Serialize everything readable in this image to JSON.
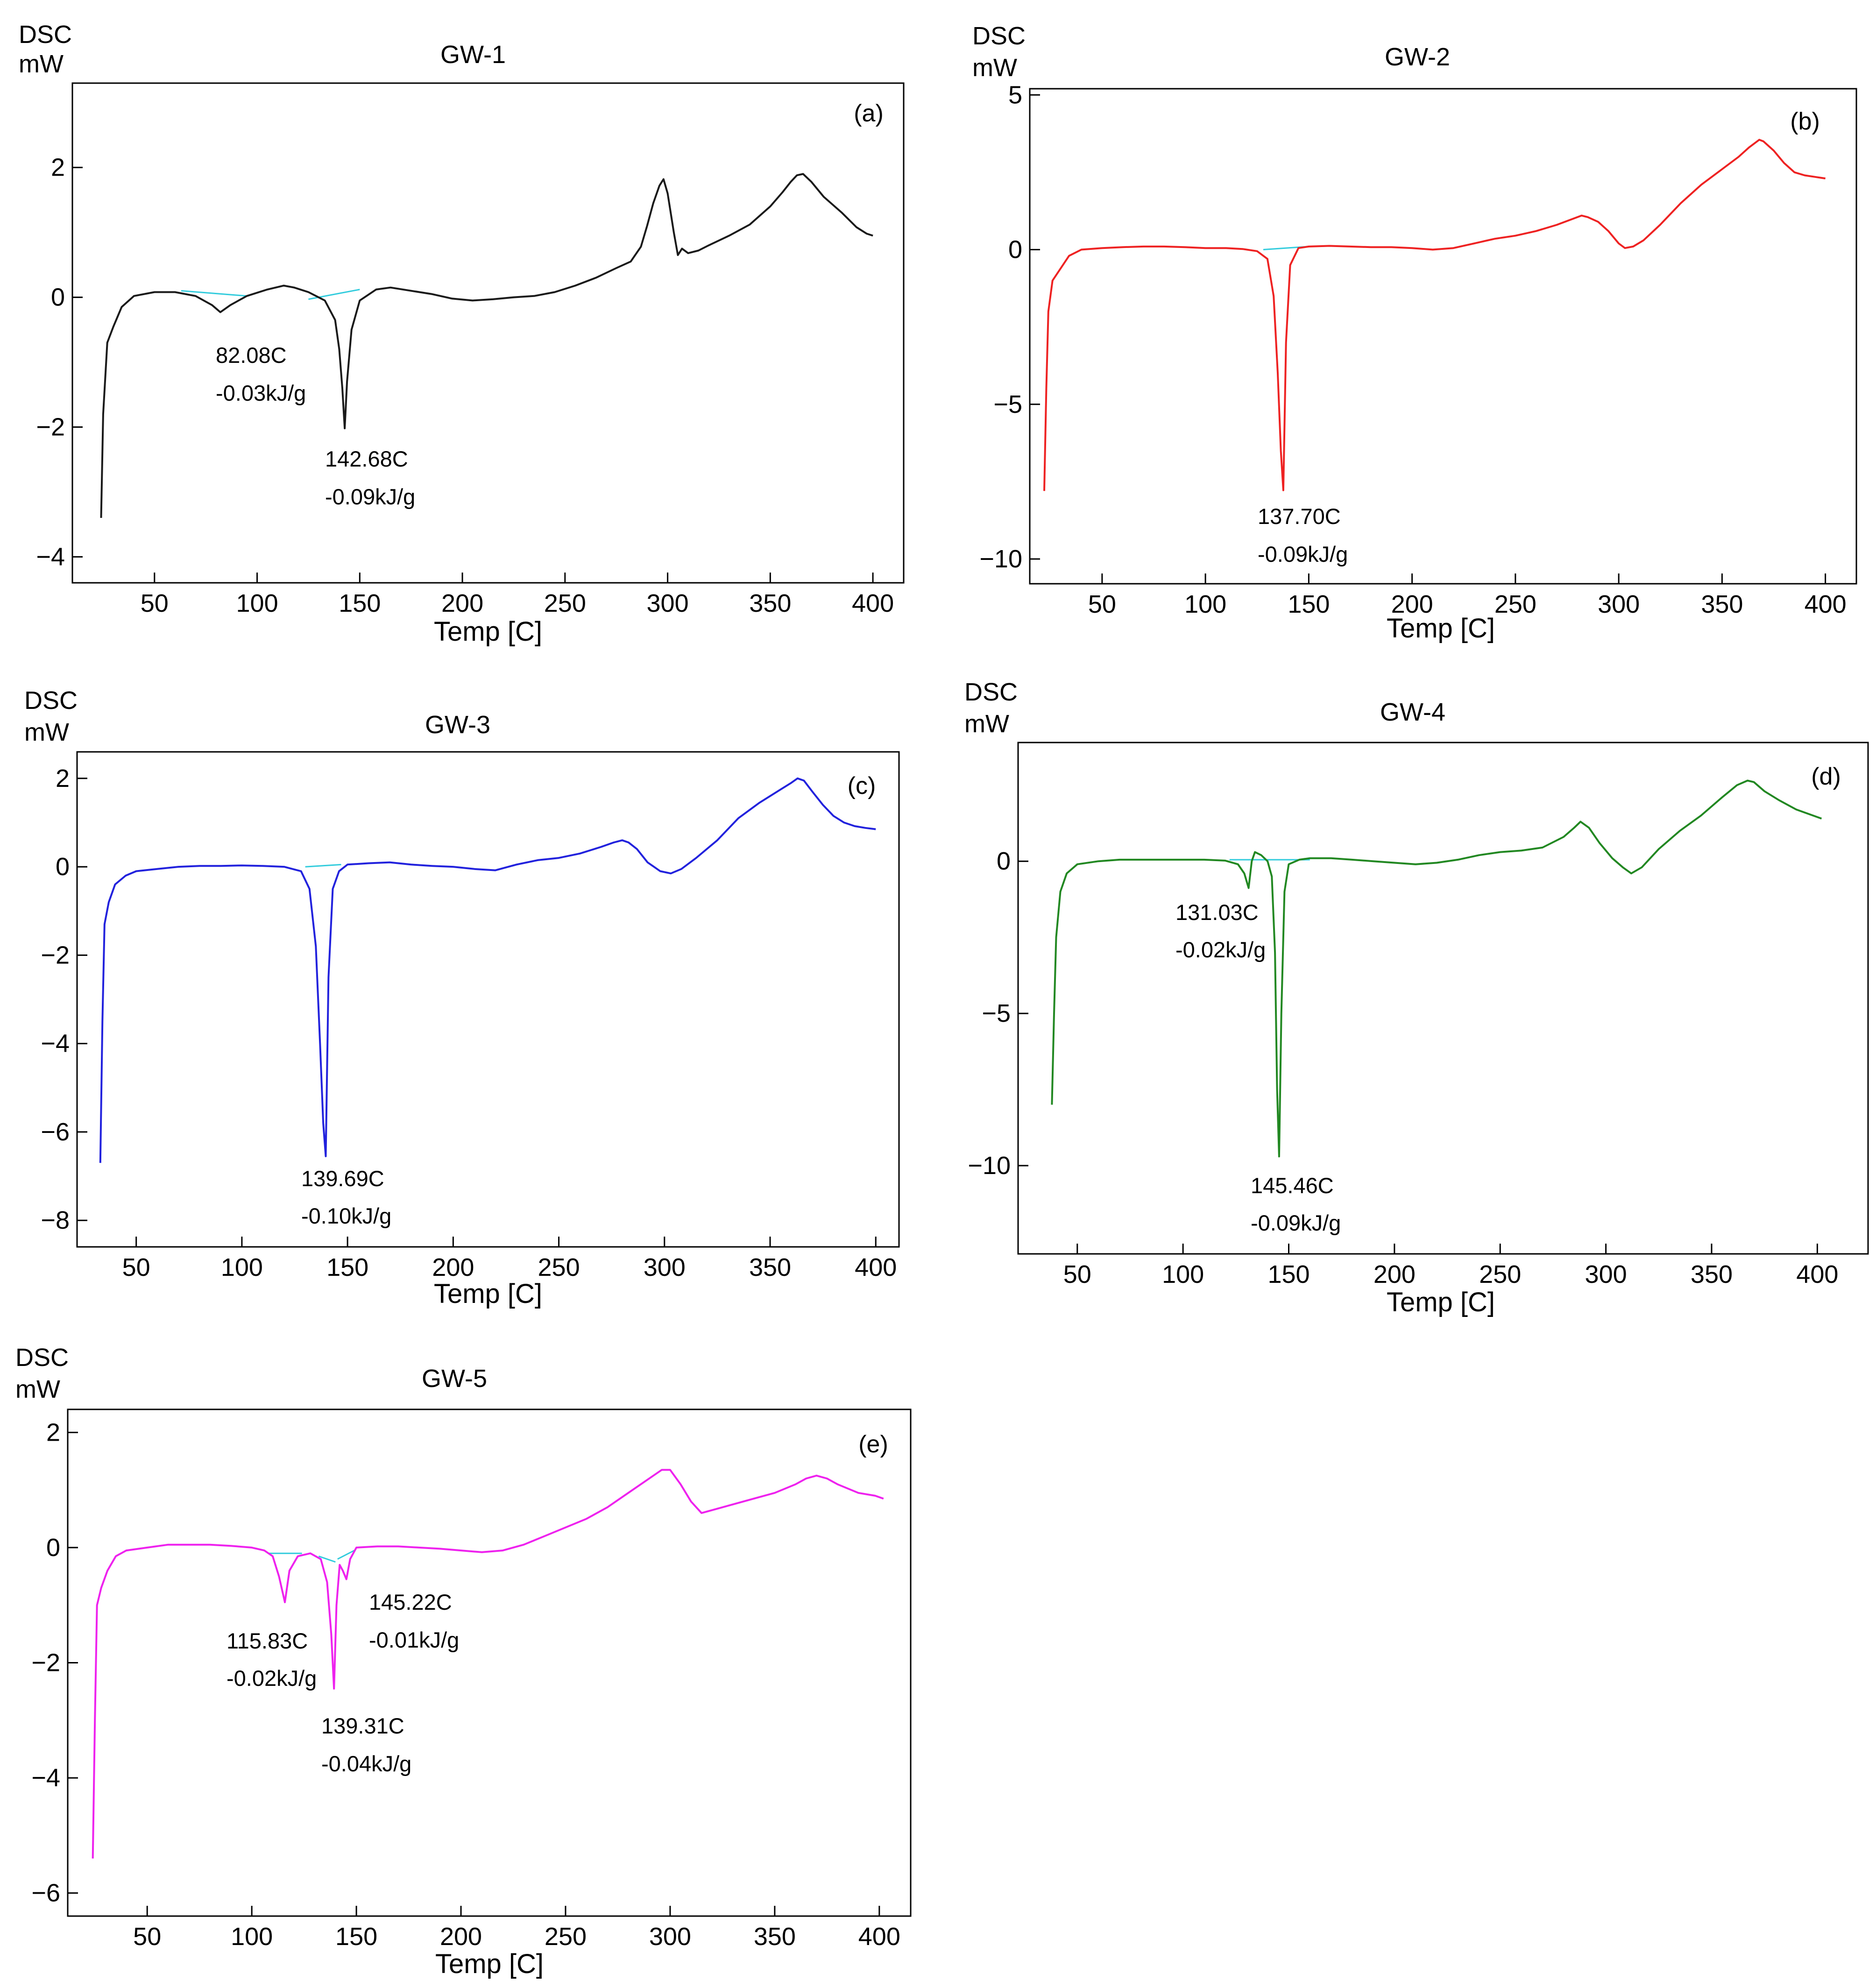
{
  "chart_data": [
    {
      "type": "line",
      "panel": "(a)",
      "title": "GW-1",
      "ylabel_top": "DSC",
      "ylabel_unit": "mW",
      "xlabel": "Temp  [C]",
      "xlim": [
        10,
        415
      ],
      "ylim": [
        -4.4,
        3.3
      ],
      "xticks": [
        50,
        100,
        150,
        200,
        250,
        300,
        350,
        400
      ],
      "yticks": [
        2,
        0,
        -2,
        -4
      ],
      "ytick_labels": [
        "2",
        "0",
        "−2",
        "−4"
      ],
      "color": "#1a1a1a",
      "series": [
        {
          "name": "GW-1",
          "x": [
            24,
            25,
            27,
            30,
            34,
            40,
            50,
            60,
            70,
            78,
            82.08,
            87,
            95,
            105,
            113,
            118,
            125,
            133,
            138,
            140,
            141.5,
            142.68,
            143.8,
            146,
            150,
            158,
            165,
            175,
            185,
            195,
            205,
            215,
            225,
            235,
            245,
            255,
            265,
            275,
            282,
            287,
            290,
            293,
            296,
            298,
            300,
            303,
            305,
            307,
            310,
            315,
            320,
            330,
            340,
            350,
            356,
            360,
            363,
            366,
            370,
            376,
            385,
            392,
            397,
            400
          ],
          "y": [
            -3.4,
            -1.8,
            -0.7,
            -0.45,
            -0.15,
            0.02,
            0.08,
            0.08,
            0.02,
            -0.12,
            -0.23,
            -0.12,
            0.02,
            0.12,
            0.18,
            0.15,
            0.08,
            -0.05,
            -0.35,
            -0.8,
            -1.4,
            -2.02,
            -1.3,
            -0.5,
            -0.05,
            0.12,
            0.15,
            0.1,
            0.05,
            -0.02,
            -0.05,
            -0.03,
            0.0,
            0.02,
            0.08,
            0.18,
            0.3,
            0.45,
            0.55,
            0.78,
            1.1,
            1.45,
            1.72,
            1.82,
            1.6,
            1.0,
            0.65,
            0.75,
            0.68,
            0.72,
            0.8,
            0.95,
            1.12,
            1.4,
            1.62,
            1.78,
            1.88,
            1.9,
            1.78,
            1.55,
            1.3,
            1.08,
            0.98,
            0.95
          ]
        }
      ],
      "baselines": [
        {
          "x": [
            63,
            95
          ],
          "y": [
            0.1,
            0.02
          ]
        },
        {
          "x": [
            125,
            150
          ],
          "y": [
            -0.03,
            0.12
          ]
        }
      ],
      "annotations": [
        {
          "temp": "82.08C",
          "energy": "-0.03kJ/g"
        },
        {
          "temp": "142.68C",
          "energy": "-0.09kJ/g"
        }
      ]
    },
    {
      "type": "line",
      "panel": "(b)",
      "title": "GW-2",
      "ylabel_top": "DSC",
      "ylabel_unit": "mW",
      "xlabel": "Temp  [C]",
      "xlim": [
        15,
        415
      ],
      "ylim": [
        -10.8,
        5.2
      ],
      "xticks": [
        50,
        100,
        150,
        200,
        250,
        300,
        350,
        400
      ],
      "yticks": [
        5,
        0,
        -5,
        -10
      ],
      "ytick_labels": [
        "5",
        "0",
        "−5",
        "−10"
      ],
      "color": "#ee2222",
      "series": [
        {
          "name": "GW-2",
          "x": [
            22,
            23,
            24,
            26,
            30,
            34,
            40,
            50,
            60,
            70,
            80,
            90,
            100,
            110,
            118,
            125,
            130,
            133,
            135,
            136.5,
            137.7,
            139,
            141,
            145,
            150,
            160,
            170,
            180,
            190,
            200,
            210,
            220,
            230,
            240,
            250,
            260,
            270,
            278,
            282,
            285,
            290,
            295,
            300,
            303,
            307,
            312,
            320,
            330,
            340,
            350,
            358,
            363,
            368,
            370,
            375,
            380,
            385,
            390,
            395,
            400
          ],
          "y": [
            -7.8,
            -4.5,
            -2.0,
            -1.0,
            -0.6,
            -0.2,
            0.0,
            0.05,
            0.08,
            0.1,
            0.1,
            0.08,
            0.05,
            0.05,
            0.02,
            -0.05,
            -0.3,
            -1.5,
            -4.0,
            -6.5,
            -7.78,
            -3.0,
            -0.5,
            0.05,
            0.1,
            0.12,
            0.1,
            0.08,
            0.08,
            0.05,
            0.0,
            0.05,
            0.2,
            0.35,
            0.45,
            0.6,
            0.8,
            1.0,
            1.1,
            1.05,
            0.9,
            0.6,
            0.2,
            0.05,
            0.1,
            0.3,
            0.8,
            1.5,
            2.1,
            2.6,
            3.0,
            3.3,
            3.55,
            3.5,
            3.2,
            2.8,
            2.5,
            2.4,
            2.35,
            2.3
          ]
        }
      ],
      "baselines": [
        {
          "x": [
            128,
            150
          ],
          "y": [
            0.0,
            0.1
          ]
        }
      ],
      "annotations": [
        {
          "temp": "137.70C",
          "energy": "-0.09kJ/g"
        }
      ]
    },
    {
      "type": "line",
      "panel": "(c)",
      "title": "GW-3",
      "ylabel_top": "DSC",
      "ylabel_unit": "mW",
      "xlabel": "Temp  [C]",
      "xlim": [
        22,
        411
      ],
      "ylim": [
        -8.6,
        2.6
      ],
      "xticks": [
        50,
        100,
        150,
        200,
        250,
        300,
        350,
        400
      ],
      "yticks": [
        2,
        0,
        -2,
        -4,
        -6,
        -8
      ],
      "ytick_labels": [
        "2",
        "0",
        "−2",
        "−4",
        "−6",
        "−8"
      ],
      "color": "#2222dd",
      "series": [
        {
          "name": "GW-3",
          "x": [
            33,
            34,
            35,
            37,
            40,
            45,
            50,
            60,
            70,
            80,
            90,
            100,
            110,
            120,
            128,
            132,
            135,
            137,
            138.5,
            139.69,
            141,
            143,
            146,
            150,
            160,
            170,
            180,
            190,
            200,
            210,
            220,
            230,
            240,
            250,
            260,
            270,
            276,
            280,
            283,
            287,
            292,
            298,
            303,
            308,
            315,
            325,
            335,
            345,
            355,
            360,
            363,
            366,
            370,
            375,
            380,
            385,
            390,
            395,
            400
          ],
          "y": [
            -6.7,
            -3.5,
            -1.3,
            -0.8,
            -0.4,
            -0.2,
            -0.1,
            -0.05,
            0.0,
            0.02,
            0.02,
            0.03,
            0.02,
            0.0,
            -0.1,
            -0.5,
            -1.8,
            -4.0,
            -5.8,
            -6.55,
            -2.5,
            -0.5,
            -0.1,
            0.05,
            0.08,
            0.1,
            0.05,
            0.02,
            0.0,
            -0.05,
            -0.08,
            0.05,
            0.15,
            0.2,
            0.3,
            0.45,
            0.55,
            0.6,
            0.55,
            0.4,
            0.1,
            -0.1,
            -0.15,
            -0.05,
            0.2,
            0.6,
            1.1,
            1.45,
            1.75,
            1.9,
            2.0,
            1.95,
            1.7,
            1.4,
            1.15,
            1.0,
            0.92,
            0.88,
            0.85
          ]
        }
      ],
      "baselines": [
        {
          "x": [
            130,
            147
          ],
          "y": [
            0.0,
            0.05
          ]
        }
      ],
      "annotations": [
        {
          "temp": "139.69C",
          "energy": "-0.10kJ/g"
        }
      ]
    },
    {
      "type": "line",
      "panel": "(d)",
      "title": "GW-4",
      "ylabel_top": "DSC",
      "ylabel_unit": "mW",
      "xlabel": "Temp  [C]",
      "xlim": [
        22,
        424
      ],
      "ylim": [
        -12.9,
        3.9
      ],
      "xticks": [
        50,
        100,
        150,
        200,
        250,
        300,
        350,
        400
      ],
      "yticks": [
        0,
        -5,
        -10
      ],
      "ytick_labels": [
        "0",
        "−5",
        "−10"
      ],
      "color": "#228822",
      "series": [
        {
          "name": "GW-4",
          "x": [
            38,
            39,
            40,
            42,
            45,
            50,
            60,
            70,
            80,
            90,
            100,
            110,
            120,
            126,
            129,
            131.03,
            132.5,
            134,
            137,
            140,
            142,
            143.5,
            144.5,
            145.46,
            146.5,
            148,
            150,
            155,
            160,
            170,
            180,
            190,
            200,
            210,
            220,
            230,
            240,
            250,
            260,
            270,
            280,
            285,
            288,
            292,
            297,
            303,
            308,
            312,
            317,
            325,
            335,
            345,
            355,
            362,
            367,
            370,
            375,
            382,
            390,
            398,
            402
          ],
          "y": [
            -8.0,
            -5.0,
            -2.5,
            -1.0,
            -0.4,
            -0.1,
            0.0,
            0.05,
            0.05,
            0.05,
            0.05,
            0.05,
            0.02,
            -0.1,
            -0.4,
            -0.88,
            0.0,
            0.3,
            0.2,
            0.0,
            -0.5,
            -3.0,
            -7.5,
            -9.7,
            -5.0,
            -1.0,
            -0.1,
            0.05,
            0.1,
            0.1,
            0.05,
            0.0,
            -0.05,
            -0.1,
            -0.05,
            0.05,
            0.2,
            0.3,
            0.35,
            0.45,
            0.8,
            1.1,
            1.3,
            1.1,
            0.6,
            0.1,
            -0.2,
            -0.4,
            -0.2,
            0.4,
            1.0,
            1.5,
            2.1,
            2.5,
            2.65,
            2.6,
            2.3,
            2.0,
            1.7,
            1.5,
            1.4
          ]
        }
      ],
      "baselines": [
        {
          "x": [
            122,
            160
          ],
          "y": [
            0.05,
            0.05
          ]
        }
      ],
      "annotations": [
        {
          "temp": "131.03C",
          "energy": "-0.02kJ/g"
        },
        {
          "temp": "145.46C",
          "energy": "-0.09kJ/g"
        }
      ]
    },
    {
      "type": "line",
      "panel": "(e)",
      "title": "GW-5",
      "ylabel_top": "DSC",
      "ylabel_unit": "mW",
      "xlabel": "Temp  [C]",
      "xlim": [
        12,
        415
      ],
      "ylim": [
        -6.4,
        2.4
      ],
      "xticks": [
        50,
        100,
        150,
        200,
        250,
        300,
        350,
        400
      ],
      "yticks": [
        2,
        0,
        -2,
        -4,
        -6
      ],
      "ytick_labels": [
        "2",
        "0",
        "−2",
        "−4",
        "−6"
      ],
      "color": "#ee22ee",
      "series": [
        {
          "name": "GW-5",
          "x": [
            24,
            25,
            26,
            28,
            31,
            35,
            40,
            50,
            60,
            70,
            80,
            90,
            100,
            106,
            110,
            113,
            115.83,
            118,
            122,
            128,
            133,
            136,
            138,
            139.31,
            140.5,
            142,
            143.5,
            145.22,
            147,
            150,
            160,
            170,
            180,
            190,
            200,
            210,
            220,
            230,
            240,
            250,
            260,
            270,
            280,
            290,
            296,
            300,
            305,
            310,
            315,
            320,
            330,
            340,
            350,
            360,
            365,
            370,
            375,
            380,
            390,
            398,
            402
          ],
          "y": [
            -5.4,
            -3.0,
            -1.0,
            -0.7,
            -0.4,
            -0.15,
            -0.05,
            0.0,
            0.05,
            0.05,
            0.05,
            0.03,
            0.0,
            -0.05,
            -0.15,
            -0.5,
            -0.95,
            -0.4,
            -0.15,
            -0.1,
            -0.2,
            -0.6,
            -1.5,
            -2.45,
            -1.0,
            -0.3,
            -0.4,
            -0.55,
            -0.2,
            0.0,
            0.02,
            0.02,
            0.0,
            -0.02,
            -0.05,
            -0.08,
            -0.05,
            0.05,
            0.2,
            0.35,
            0.5,
            0.7,
            0.95,
            1.2,
            1.35,
            1.35,
            1.1,
            0.8,
            0.6,
            0.65,
            0.75,
            0.85,
            0.95,
            1.1,
            1.2,
            1.25,
            1.2,
            1.1,
            0.95,
            0.9,
            0.85
          ]
        }
      ],
      "baselines": [
        {
          "x": [
            108,
            124
          ],
          "y": [
            -0.1,
            -0.1
          ]
        },
        {
          "x": [
            132,
            140
          ],
          "y": [
            -0.15,
            -0.25
          ]
        },
        {
          "x": [
            141,
            149
          ],
          "y": [
            -0.2,
            -0.05
          ]
        }
      ],
      "annotations": [
        {
          "temp": "145.22C",
          "energy": "-0.01kJ/g"
        },
        {
          "temp": "115.83C",
          "energy": "-0.02kJ/g"
        },
        {
          "temp": "139.31C",
          "energy": "-0.04kJ/g"
        }
      ]
    }
  ]
}
